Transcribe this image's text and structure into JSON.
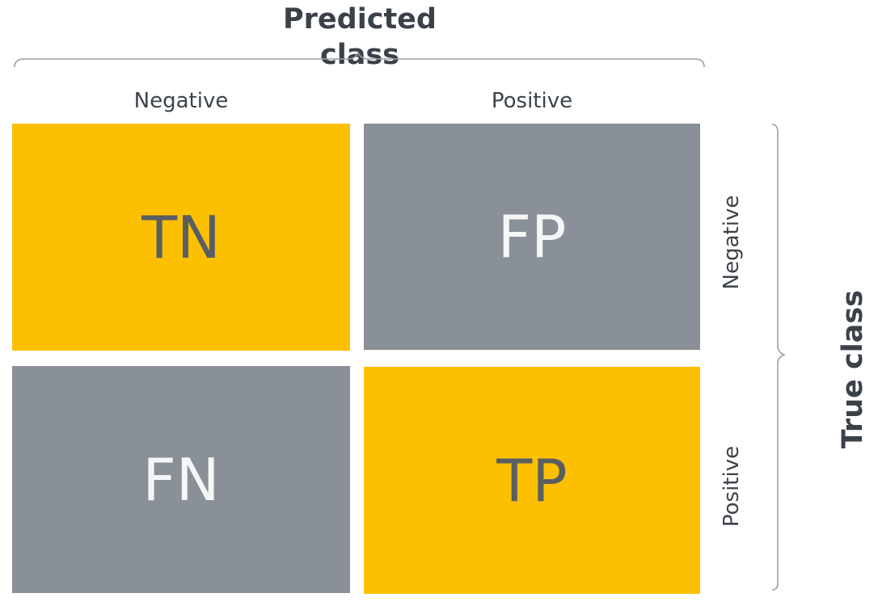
{
  "predicted_axis": {
    "title": "Predicted class",
    "columns": [
      "Negative",
      "Positive"
    ]
  },
  "true_axis": {
    "title": "True class",
    "rows": [
      "Negative",
      "Positive"
    ]
  },
  "cells": {
    "tn": "TN",
    "fp": "FP",
    "fn": "FN",
    "tp": "TP"
  },
  "colors": {
    "correct": "#fdc000",
    "incorrect": "#8a9097"
  }
}
